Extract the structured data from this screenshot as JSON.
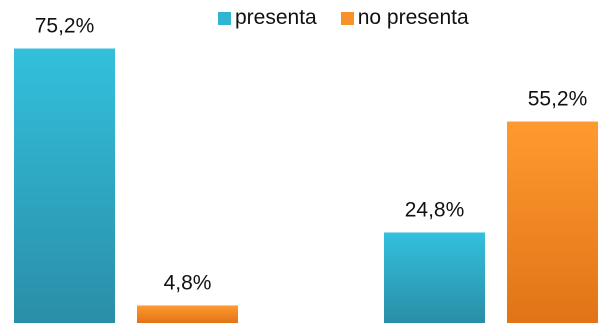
{
  "chart_data": {
    "type": "bar",
    "categories": [
      "",
      ""
    ],
    "series": [
      {
        "name": "presenta",
        "color": "#2fb5d2",
        "values": [
          75.2,
          24.8
        ],
        "labels": [
          "75,2%",
          "24,8%"
        ]
      },
      {
        "name": "no presenta",
        "color": "#f7922a",
        "values": [
          4.8,
          55.2
        ],
        "labels": [
          "4,8%",
          "55,2%"
        ]
      }
    ],
    "title": "",
    "xlabel": "",
    "ylabel": "",
    "ylim": [
      0,
      100
    ],
    "grid": false,
    "legend_position": "top"
  }
}
